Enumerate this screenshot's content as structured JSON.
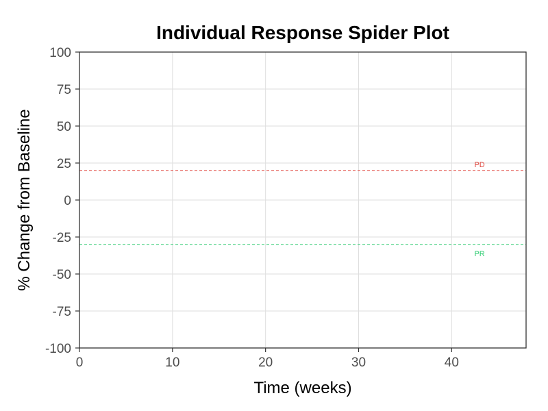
{
  "chart_data": {
    "type": "line",
    "title": "Individual Response Spider Plot",
    "xlabel": "Time (weeks)",
    "ylabel": "% Change from Baseline",
    "xlim": [
      0,
      48
    ],
    "ylim": [
      -100,
      100
    ],
    "x_ticks": [
      0,
      10,
      20,
      30,
      40
    ],
    "y_ticks": [
      -100,
      -75,
      -50,
      -25,
      0,
      25,
      50,
      75,
      100
    ],
    "grid": true,
    "series": [],
    "reference_lines": [
      {
        "label": "PD",
        "y": 20,
        "color": "#e0473e",
        "style": "dashed"
      },
      {
        "label": "PR",
        "y": -30,
        "color": "#2ecc71",
        "style": "dashed"
      }
    ]
  }
}
